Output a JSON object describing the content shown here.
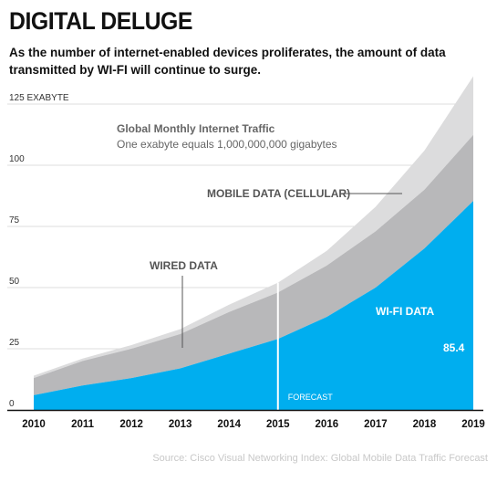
{
  "header": {
    "title": "DIGITAL DELUGE",
    "subtitle": "As the number of internet-enabled devices proliferates, the amount of data transmitted by WI-FI will continue to surge."
  },
  "source": "Source: Cisco Visual Networking Index: Global Mobile Data Traffic Forecast",
  "colors": {
    "wifi": "#00aeef",
    "wired": "#b8b8ba",
    "mobile": "#dcdcdd",
    "grid": "#d0d0d0"
  },
  "chart_data": {
    "type": "area",
    "stacked": true,
    "title": "Global Monthly Internet Traffic",
    "subtitle": "One exabyte equals 1,000,000,000 gigabytes",
    "x": [
      "2010",
      "2011",
      "2012",
      "2013",
      "2014",
      "2015",
      "2016",
      "2017",
      "2018",
      "2019"
    ],
    "ylim": [
      0,
      125
    ],
    "yticks": [
      0,
      25,
      50,
      75,
      100,
      125
    ],
    "ytick_labels": [
      "0",
      "25",
      "50",
      "75",
      "100",
      "125 EXABYTE"
    ],
    "grid": true,
    "series": [
      {
        "name": "WI-FI DATA",
        "values": [
          6,
          10,
          13,
          17,
          23,
          29,
          38,
          50,
          66,
          85.4
        ]
      },
      {
        "name": "WIRED DATA",
        "values": [
          7,
          10,
          12,
          14,
          17,
          19,
          21,
          23,
          24,
          27
        ]
      },
      {
        "name": "MOBILE DATA (CELLULAR)",
        "values": [
          1,
          1,
          1.5,
          2,
          3,
          4,
          6,
          10,
          16,
          24
        ]
      }
    ],
    "annotations": {
      "forecast_label": "FORECAST",
      "forecast_start": "2015",
      "last_value_label": "85.4"
    }
  }
}
